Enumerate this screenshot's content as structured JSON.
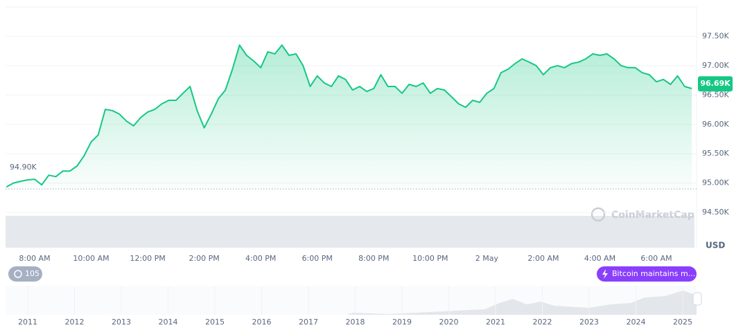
{
  "chart_data": {
    "type": "line",
    "color": "#16c784",
    "categories": [
      null,
      null,
      null,
      null,
      "8:00 AM",
      null,
      null,
      null,
      null,
      null,
      null,
      null,
      "10:00 AM",
      null,
      null,
      null,
      null,
      null,
      null,
      null,
      "12:00 PM",
      null,
      null,
      null,
      null,
      null,
      null,
      null,
      "2:00 PM",
      null,
      null,
      null,
      null,
      null,
      null,
      null,
      "4:00 PM",
      null,
      null,
      null,
      null,
      null,
      null,
      null,
      "6:00 PM",
      null,
      null,
      null,
      null,
      null,
      null,
      null,
      "8:00 PM",
      null,
      null,
      null,
      null,
      null,
      null,
      null,
      "10:00 PM",
      null,
      null,
      null,
      null,
      null,
      null,
      null,
      "2 May",
      null,
      null,
      null,
      null,
      null,
      null,
      null,
      "2:00 AM",
      null,
      null,
      null,
      null,
      null,
      null,
      null,
      "4:00 AM",
      null,
      null,
      null,
      null,
      null,
      null,
      null,
      "6:00 AM",
      null,
      null,
      null,
      null,
      null
    ],
    "values": [
      94935,
      95000,
      95030,
      95055,
      95065,
      94970,
      95135,
      95110,
      95205,
      95205,
      95290,
      95465,
      95700,
      95820,
      96255,
      96235,
      96175,
      96055,
      95975,
      96115,
      96210,
      96255,
      96350,
      96410,
      96410,
      96530,
      96645,
      96235,
      95940,
      96175,
      96435,
      96585,
      96940,
      97350,
      97175,
      97080,
      96965,
      97235,
      97200,
      97350,
      97175,
      97200,
      97000,
      96645,
      96825,
      96705,
      96645,
      96825,
      96765,
      96585,
      96645,
      96560,
      96610,
      96845,
      96645,
      96645,
      96530,
      96680,
      96645,
      96705,
      96530,
      96610,
      96585,
      96470,
      96350,
      96290,
      96410,
      96375,
      96530,
      96610,
      96880,
      96940,
      97035,
      97115,
      97060,
      97000,
      96845,
      96965,
      97000,
      96965,
      97035,
      97060,
      97115,
      97200,
      97175,
      97200,
      97115,
      97000,
      96965,
      96965,
      96880,
      96845,
      96725,
      96765,
      96680,
      96825,
      96645,
      96610
    ],
    "ylim": [
      93900,
      98000
    ],
    "yticks": [
      {
        "value": 94500,
        "label": "94.50K"
      },
      {
        "value": 95000,
        "label": "95.00K"
      },
      {
        "value": 95500,
        "label": "95.50K"
      },
      {
        "value": 96000,
        "label": "96.00K"
      },
      {
        "value": 96500,
        "label": "96.50K"
      },
      {
        "value": 97000,
        "label": "97.00K"
      },
      {
        "value": 97500,
        "label": "97.50K"
      }
    ],
    "grid": true,
    "reference_line": {
      "value": 94900,
      "label": "94.90K"
    },
    "last_price": {
      "value": 96690,
      "label": "96.69K"
    },
    "unit_label": "USD",
    "watermark": "CoinMarketCap",
    "history_badge": 105,
    "news_badge": "Bitcoin maintains m...",
    "navigator_years": [
      "2011",
      "2012",
      "2013",
      "2014",
      "2015",
      "2016",
      "2017",
      "2018",
      "2019",
      "2020",
      "2021",
      "2022",
      "2023",
      "2024",
      "2025"
    ]
  }
}
